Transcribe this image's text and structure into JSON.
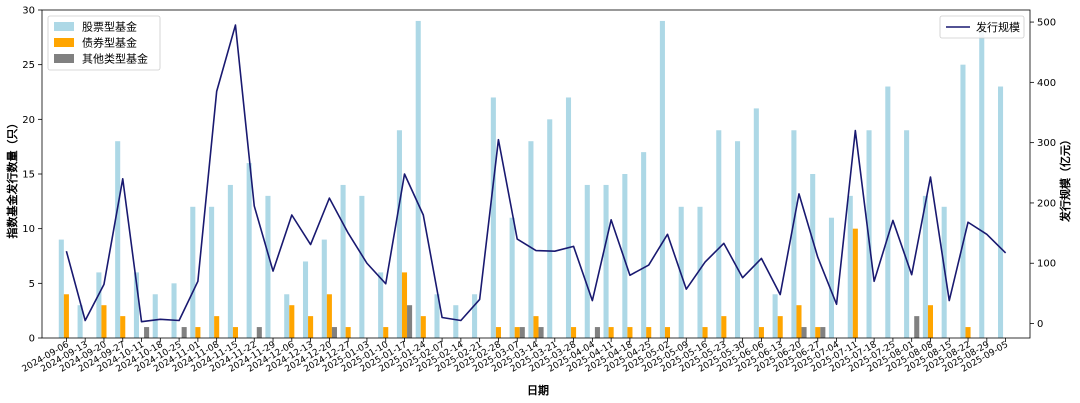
{
  "chart_data": {
    "type": "bar",
    "xlabel": "日期",
    "ylabel": "指数基金发行数量（只）",
    "y2label": "发行规模（亿元）",
    "ylim": [
      0,
      30
    ],
    "y2lim": [
      -24,
      520
    ],
    "yticks": [
      0,
      5,
      10,
      15,
      20,
      25,
      30
    ],
    "y2ticks": [
      0,
      100,
      200,
      300,
      400,
      500
    ],
    "grid": false,
    "legend_left_placement": "top-left",
    "legend_right_placement": "top-right",
    "categories": [
      "2024-09-06",
      "2024-09-13",
      "2024-09-20",
      "2024-09-27",
      "2024-10-11",
      "2024-10-18",
      "2024-10-25",
      "2024-11-01",
      "2024-11-08",
      "2024-11-15",
      "2024-11-22",
      "2024-11-29",
      "2024-12-06",
      "2024-12-13",
      "2024-12-20",
      "2024-12-27",
      "2025-01-03",
      "2025-01-10",
      "2025-01-17",
      "2025-01-24",
      "2025-02-07",
      "2025-02-14",
      "2025-02-21",
      "2025-02-28",
      "2025-03-07",
      "2025-03-14",
      "2025-03-21",
      "2025-03-28",
      "2025-04-04",
      "2025-04-11",
      "2025-04-18",
      "2025-04-25",
      "2025-05-02",
      "2025-05-09",
      "2025-05-16",
      "2025-05-23",
      "2025-05-30",
      "2025-06-06",
      "2025-06-13",
      "2025-06-20",
      "2025-06-27",
      "2025-07-04",
      "2025-07-11",
      "2025-07-18",
      "2025-07-25",
      "2025-08-01",
      "2025-08-08",
      "2025-08-15",
      "2025-08-22",
      "2025-08-29",
      "2025-09-05"
    ],
    "series": [
      {
        "name": "股票型基金",
        "color": "#add8e6",
        "axis": "left",
        "values": [
          9,
          3,
          6,
          18,
          6,
          4,
          5,
          12,
          12,
          14,
          16,
          13,
          4,
          7,
          9,
          14,
          13,
          6,
          19,
          29,
          4,
          3,
          4,
          22,
          11,
          18,
          20,
          22,
          14,
          14,
          15,
          17,
          29,
          12,
          12,
          19,
          18,
          21,
          4,
          19,
          15,
          11,
          13,
          19,
          23,
          19,
          13,
          12,
          25,
          28,
          23
        ]
      },
      {
        "name": "债券型基金",
        "color": "#ffa500",
        "axis": "left",
        "values": [
          4,
          0,
          3,
          2,
          0,
          0,
          0,
          1,
          2,
          1,
          0,
          0,
          3,
          2,
          4,
          1,
          0,
          1,
          6,
          2,
          0,
          0,
          0,
          1,
          1,
          2,
          0,
          1,
          0,
          1,
          1,
          1,
          1,
          0,
          1,
          2,
          0,
          1,
          2,
          3,
          1,
          0,
          10,
          0,
          0,
          0,
          3,
          0,
          1,
          0,
          0
        ]
      },
      {
        "name": "其他类型基金",
        "color": "#808080",
        "axis": "left",
        "values": [
          0,
          0,
          0,
          0,
          1,
          0,
          1,
          0,
          0,
          0,
          1,
          0,
          0,
          0,
          1,
          0,
          0,
          0,
          3,
          0,
          0,
          0,
          0,
          0,
          1,
          1,
          0,
          0,
          1,
          0,
          0,
          0,
          0,
          0,
          0,
          0,
          0,
          0,
          0,
          1,
          1,
          0,
          0,
          0,
          0,
          2,
          0,
          0,
          0,
          0,
          0
        ]
      },
      {
        "name": "发行规模",
        "type": "line",
        "color": "#191970",
        "axis": "right",
        "values": [
          120,
          5,
          65,
          240,
          3,
          7,
          5,
          70,
          385,
          495,
          195,
          87,
          180,
          131,
          208,
          150,
          100,
          66,
          248,
          180,
          10,
          5,
          40,
          305,
          140,
          121,
          120,
          128,
          38,
          172,
          80,
          97,
          148,
          57,
          102,
          133,
          76,
          108,
          48,
          215,
          110,
          32,
          320,
          70,
          171,
          81,
          243,
          38,
          168,
          148,
          117
        ]
      }
    ]
  }
}
